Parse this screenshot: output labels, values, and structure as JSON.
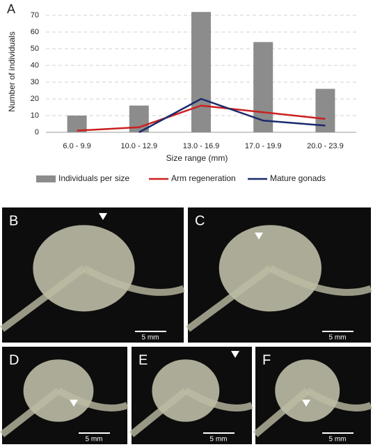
{
  "chart_data": {
    "type": "bar",
    "panel_label": "A",
    "x_label": "Size range (mm)",
    "y_label": "Number of individuals",
    "categories": [
      "6.0 - 9.9",
      "10.0 - 12.9",
      "13.0 - 16.9",
      "17.0 - 19.9",
      "20.0 - 23.9"
    ],
    "series": [
      {
        "name": "Individuals per size",
        "type": "bar",
        "color": "#8c8c8c",
        "values": [
          10,
          16,
          72,
          54,
          26
        ]
      },
      {
        "name": "Arm regeneration",
        "type": "line",
        "color": "#cc1f1f",
        "values": [
          1,
          3,
          16,
          12,
          8
        ]
      },
      {
        "name": "Mature gonads",
        "type": "line",
        "color": "#1a2a6c",
        "values": [
          null,
          0,
          20,
          7,
          4
        ]
      }
    ],
    "ylim": [
      0,
      75
    ],
    "yticks": [
      0,
      10,
      20,
      30,
      40,
      50,
      60,
      70
    ],
    "grid": true
  },
  "panels": [
    {
      "label": "B",
      "scale_bar": "5 mm"
    },
    {
      "label": "C",
      "scale_bar": "5 mm"
    },
    {
      "label": "D",
      "scale_bar": "5 mm"
    },
    {
      "label": "E",
      "scale_bar": "5 mm"
    },
    {
      "label": "F",
      "scale_bar": "5 mm"
    }
  ]
}
